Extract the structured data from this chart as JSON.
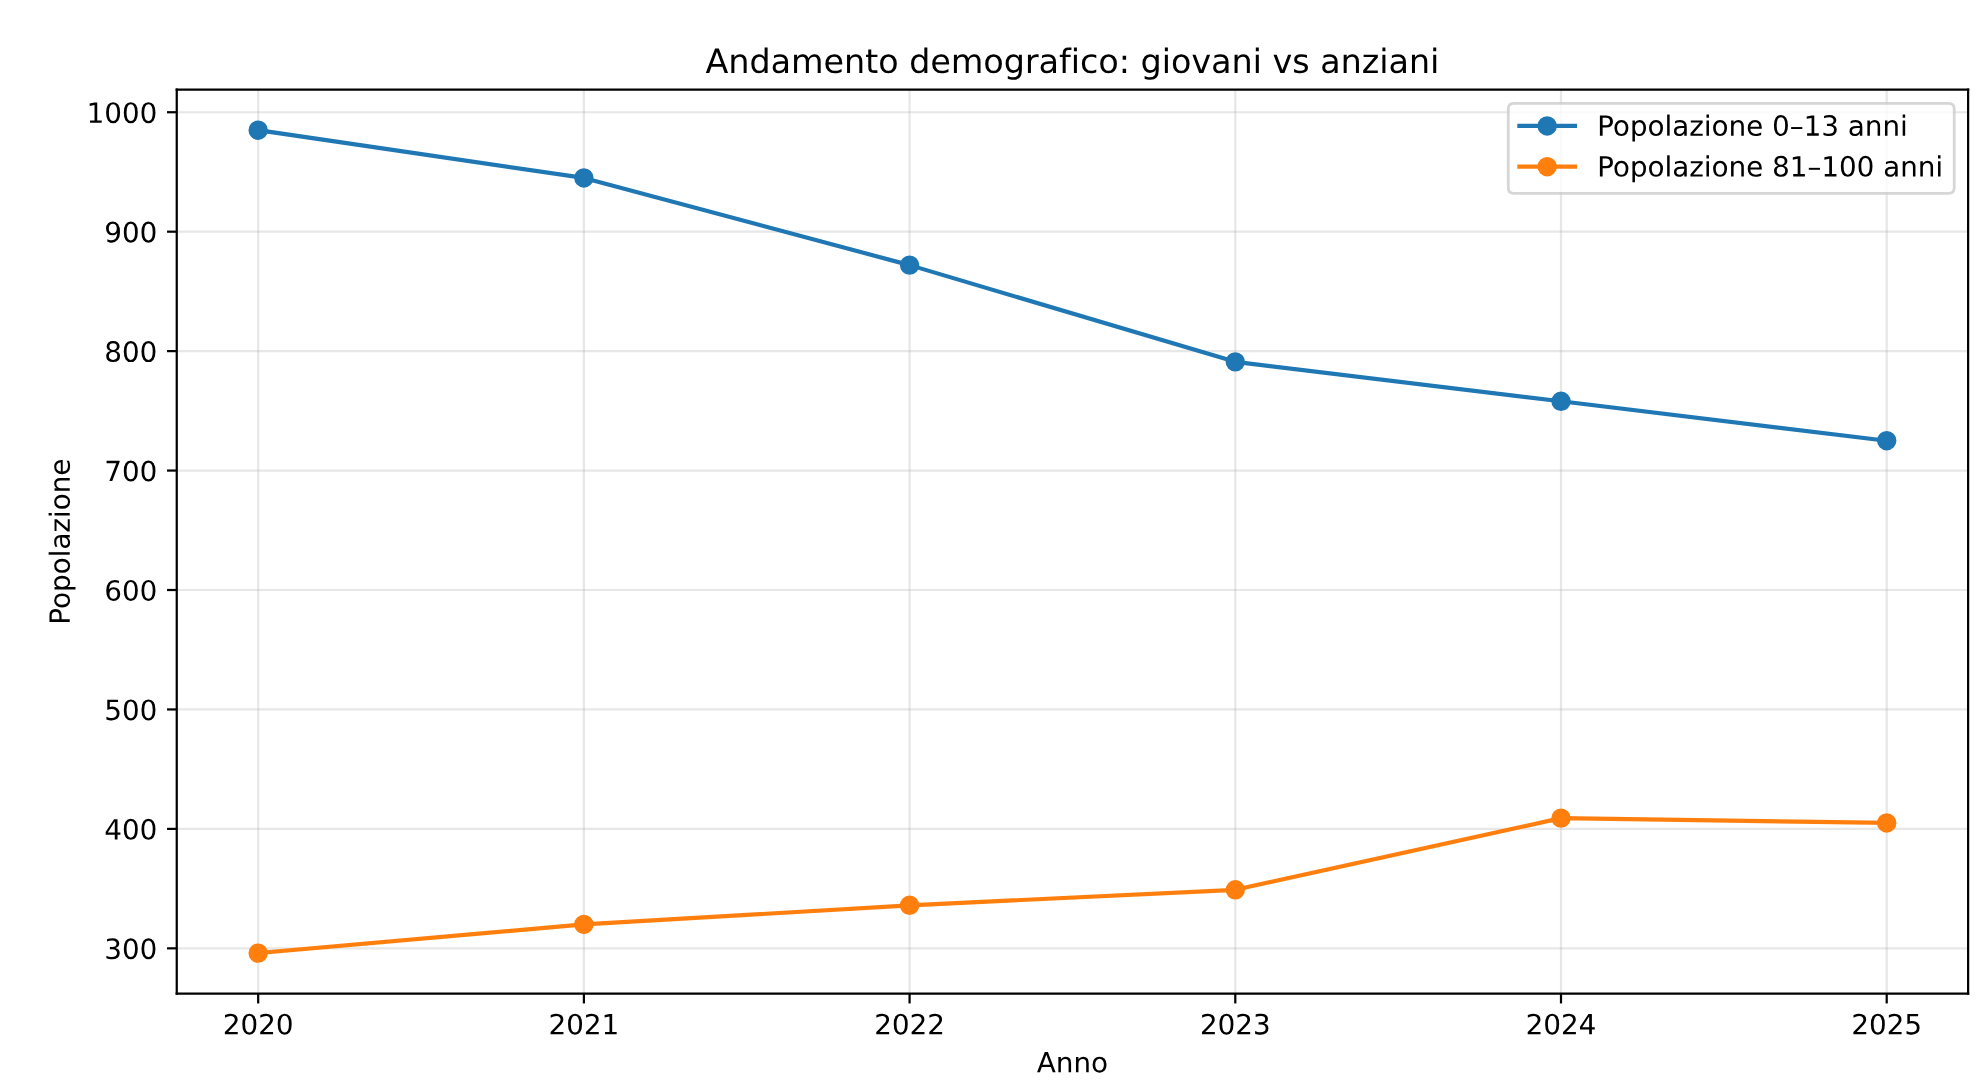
{
  "chart_data": {
    "type": "line",
    "title": "Andamento demografico: giovani vs anziani",
    "xlabel": "Anno",
    "ylabel": "Popolazione",
    "x": [
      2020,
      2021,
      2022,
      2023,
      2024,
      2025
    ],
    "series": [
      {
        "name": "Popolazione 0–13 anni",
        "color": "#1f77b4",
        "values": [
          985,
          945,
          872,
          791,
          758,
          725
        ]
      },
      {
        "name": "Popolazione 81–100 anni",
        "color": "#ff7f0e",
        "values": [
          296,
          320,
          336,
          349,
          409,
          405
        ]
      }
    ],
    "xlim": [
      2019.75,
      2025.25
    ],
    "xticks": [
      2020,
      2021,
      2022,
      2023,
      2024,
      2025
    ],
    "ylim": [
      262,
      1019
    ],
    "yticks": [
      300,
      400,
      500,
      600,
      700,
      800,
      900,
      1000
    ],
    "grid": true,
    "legend": "top right",
    "marker": "circle",
    "line_style": "solid"
  }
}
